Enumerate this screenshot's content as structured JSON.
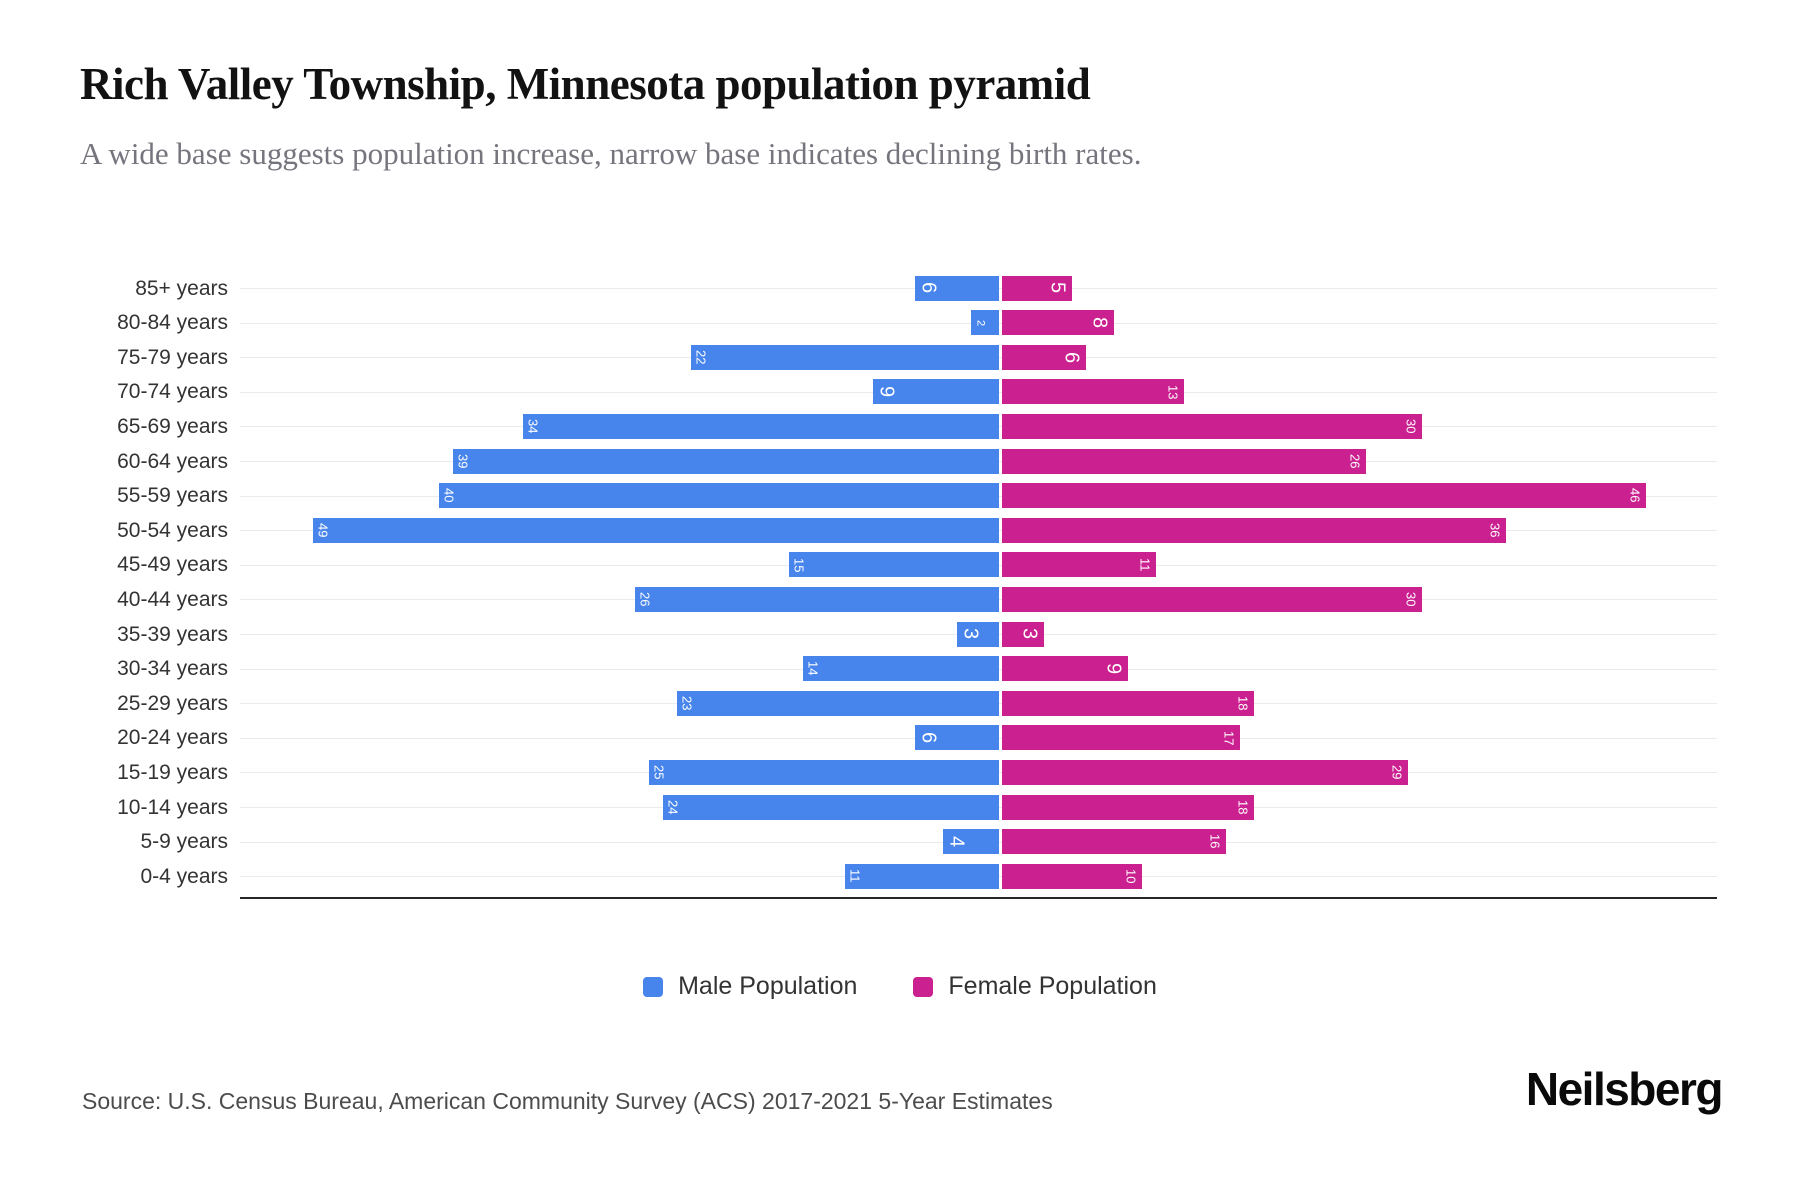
{
  "title": "Rich Valley Township, Minnesota population pyramid",
  "subtitle": "A wide base suggests population increase, narrow base indicates declining birth rates.",
  "legend": {
    "male_label": "Male Population",
    "female_label": "Female Population"
  },
  "source": "Source: U.S. Census Bureau, American Community Survey (ACS) 2017-2021 5-Year Estimates",
  "brand": "Neilsberg",
  "colors": {
    "male": "#4785ec",
    "female": "#cb2090",
    "grid": "#ebebeb",
    "axis": "#262626"
  },
  "chart_data": {
    "type": "bar",
    "subtype": "population-pyramid",
    "orientation": "horizontal",
    "grid": true,
    "legend_position": "bottom",
    "categories": [
      "85+ years",
      "80-84 years",
      "75-79 years",
      "70-74 years",
      "65-69 years",
      "60-64 years",
      "55-59 years",
      "50-54 years",
      "45-49 years",
      "40-44 years",
      "35-39 years",
      "30-34 years",
      "25-29 years",
      "20-24 years",
      "15-19 years",
      "10-14 years",
      "5-9 years",
      "0-4 years"
    ],
    "series": [
      {
        "name": "Male Population",
        "side": "left",
        "values": [
          6,
          2,
          22,
          9,
          34,
          39,
          40,
          49,
          15,
          26,
          3,
          14,
          23,
          6,
          25,
          24,
          4,
          11
        ]
      },
      {
        "name": "Female Population",
        "side": "right",
        "values": [
          5,
          8,
          6,
          13,
          30,
          26,
          46,
          36,
          11,
          30,
          3,
          9,
          18,
          17,
          29,
          18,
          16,
          10
        ]
      }
    ]
  }
}
